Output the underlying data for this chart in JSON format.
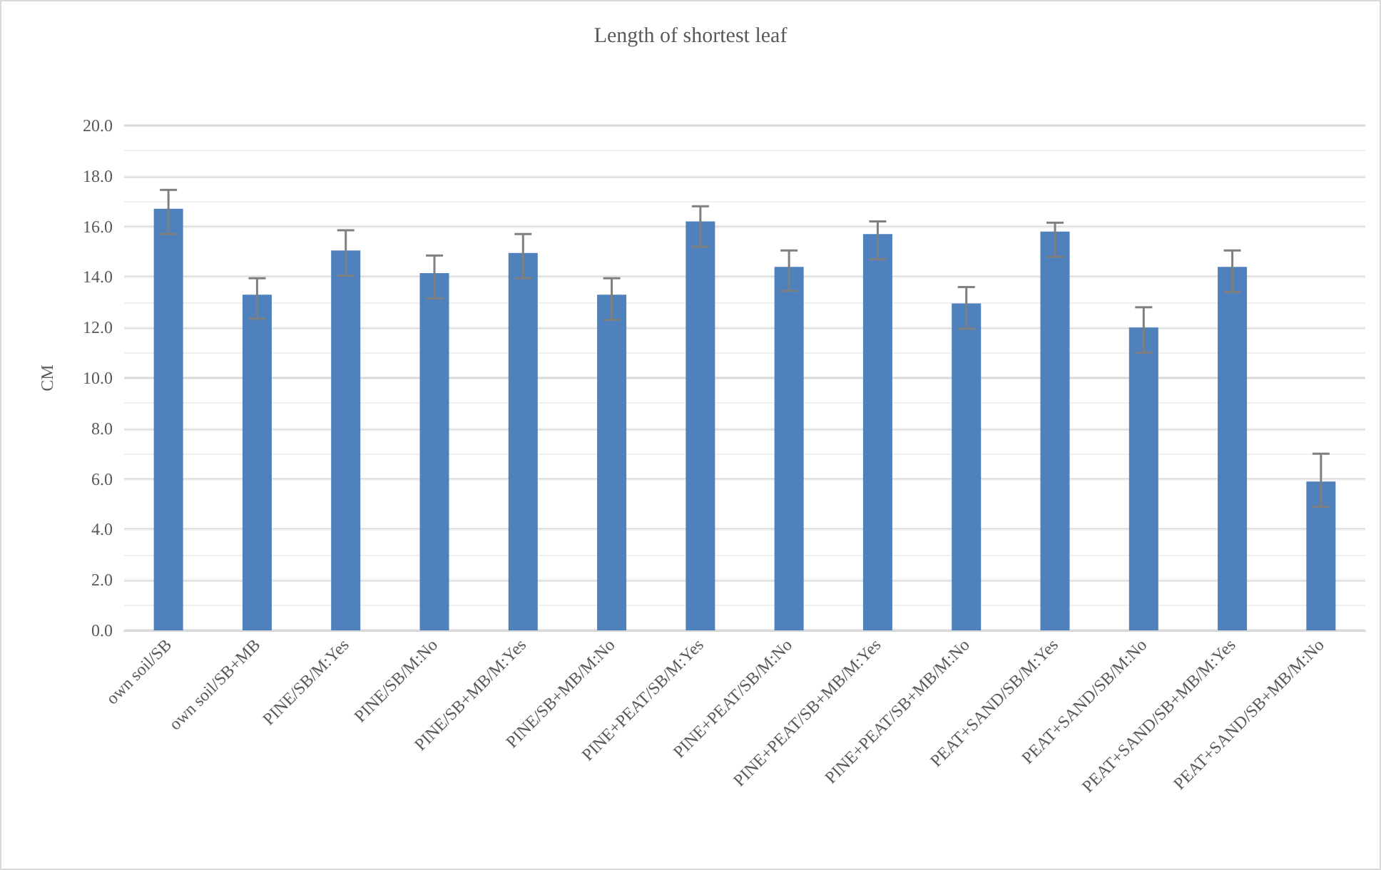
{
  "chart_data": {
    "type": "bar",
    "title": "Length of shortest leaf",
    "ylabel": "CM",
    "categories": [
      "own soil/SB",
      "own soil/SB+MB",
      "PINE/SB/M:Yes",
      "PINE/SB/M:No",
      "PINE/SB+MB/M:Yes",
      "PINE/SB+MB/M:No",
      "PINE+PEAT/SB/M:Yes",
      "PINE+PEAT/SB/M:No",
      "PINE+PEAT/SB+MB/M:Yes",
      "PINE+PEAT/SB+MB/M:No",
      "PEAT+SAND/SB/M:Yes",
      "PEAT+SAND/SB/M:No",
      "PEAT+SAND/SB+MB/M:Yes",
      "PEAT+SAND/SB+MB/M:No"
    ],
    "values": [
      16.7,
      13.3,
      15.05,
      14.15,
      14.95,
      13.3,
      16.2,
      14.4,
      15.7,
      12.95,
      15.8,
      12.0,
      14.4,
      5.9
    ],
    "errors": [
      [
        15.7,
        17.45
      ],
      [
        12.35,
        13.95
      ],
      [
        14.05,
        15.85
      ],
      [
        13.15,
        14.85
      ],
      [
        13.95,
        15.7
      ],
      [
        12.3,
        13.95
      ],
      [
        15.2,
        16.8
      ],
      [
        13.45,
        15.05
      ],
      [
        14.7,
        16.2
      ],
      [
        11.95,
        13.6
      ],
      [
        14.8,
        16.15
      ],
      [
        11.0,
        12.8
      ],
      [
        13.4,
        15.05
      ],
      [
        4.9,
        7.0
      ]
    ],
    "color": "#4f81bd",
    "ylim": [
      0,
      20
    ],
    "yticks": [
      {
        "value": 0,
        "label": "0.0"
      },
      {
        "value": 2,
        "label": "2.0"
      },
      {
        "value": 4,
        "label": "4.0"
      },
      {
        "value": 6,
        "label": "6.0"
      },
      {
        "value": 8,
        "label": "8.0"
      },
      {
        "value": 10,
        "label": "10.0"
      },
      {
        "value": 12,
        "label": "12.0"
      },
      {
        "value": 14,
        "label": "14.0"
      },
      {
        "value": 16,
        "label": "16.0"
      },
      {
        "value": 18,
        "label": "18.0"
      },
      {
        "value": 20,
        "label": "20.0"
      }
    ],
    "grid": "y"
  }
}
